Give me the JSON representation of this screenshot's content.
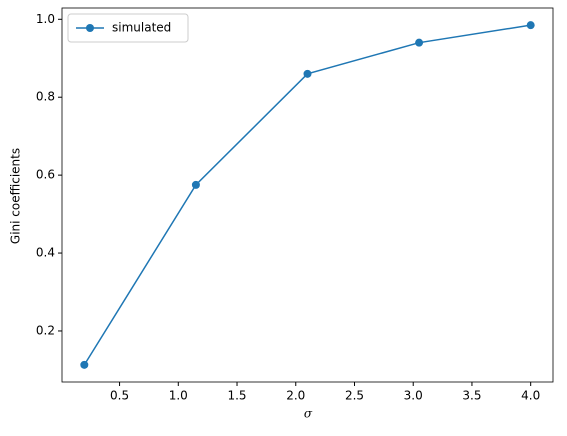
{
  "chart_data": {
    "type": "line",
    "x_label": "σ",
    "y_label": "Gini coefficients",
    "x": [
      0.2,
      1.15,
      2.1,
      3.05,
      4.0
    ],
    "series": [
      {
        "name": "simulated",
        "color": "#1f77b4",
        "values": [
          0.113,
          0.575,
          0.86,
          0.94,
          0.985
        ]
      }
    ],
    "xlim": [
      0.01,
      4.19
    ],
    "ylim": [
      0.069,
      1.029
    ],
    "xticks": [
      0.5,
      {
        "value": 1,
        "label": "1.0"
      },
      1.5,
      {
        "value": 2,
        "label": "2.0"
      },
      2.5,
      {
        "value": 3,
        "label": "3.0"
      },
      3.5,
      {
        "value": 4,
        "label": "4.0"
      }
    ],
    "yticks": [
      0.2,
      0.4,
      0.6,
      0.8,
      {
        "value": 1,
        "label": "1.0"
      }
    ],
    "legend": "upper-left",
    "marker": "circle",
    "grid": false
  }
}
